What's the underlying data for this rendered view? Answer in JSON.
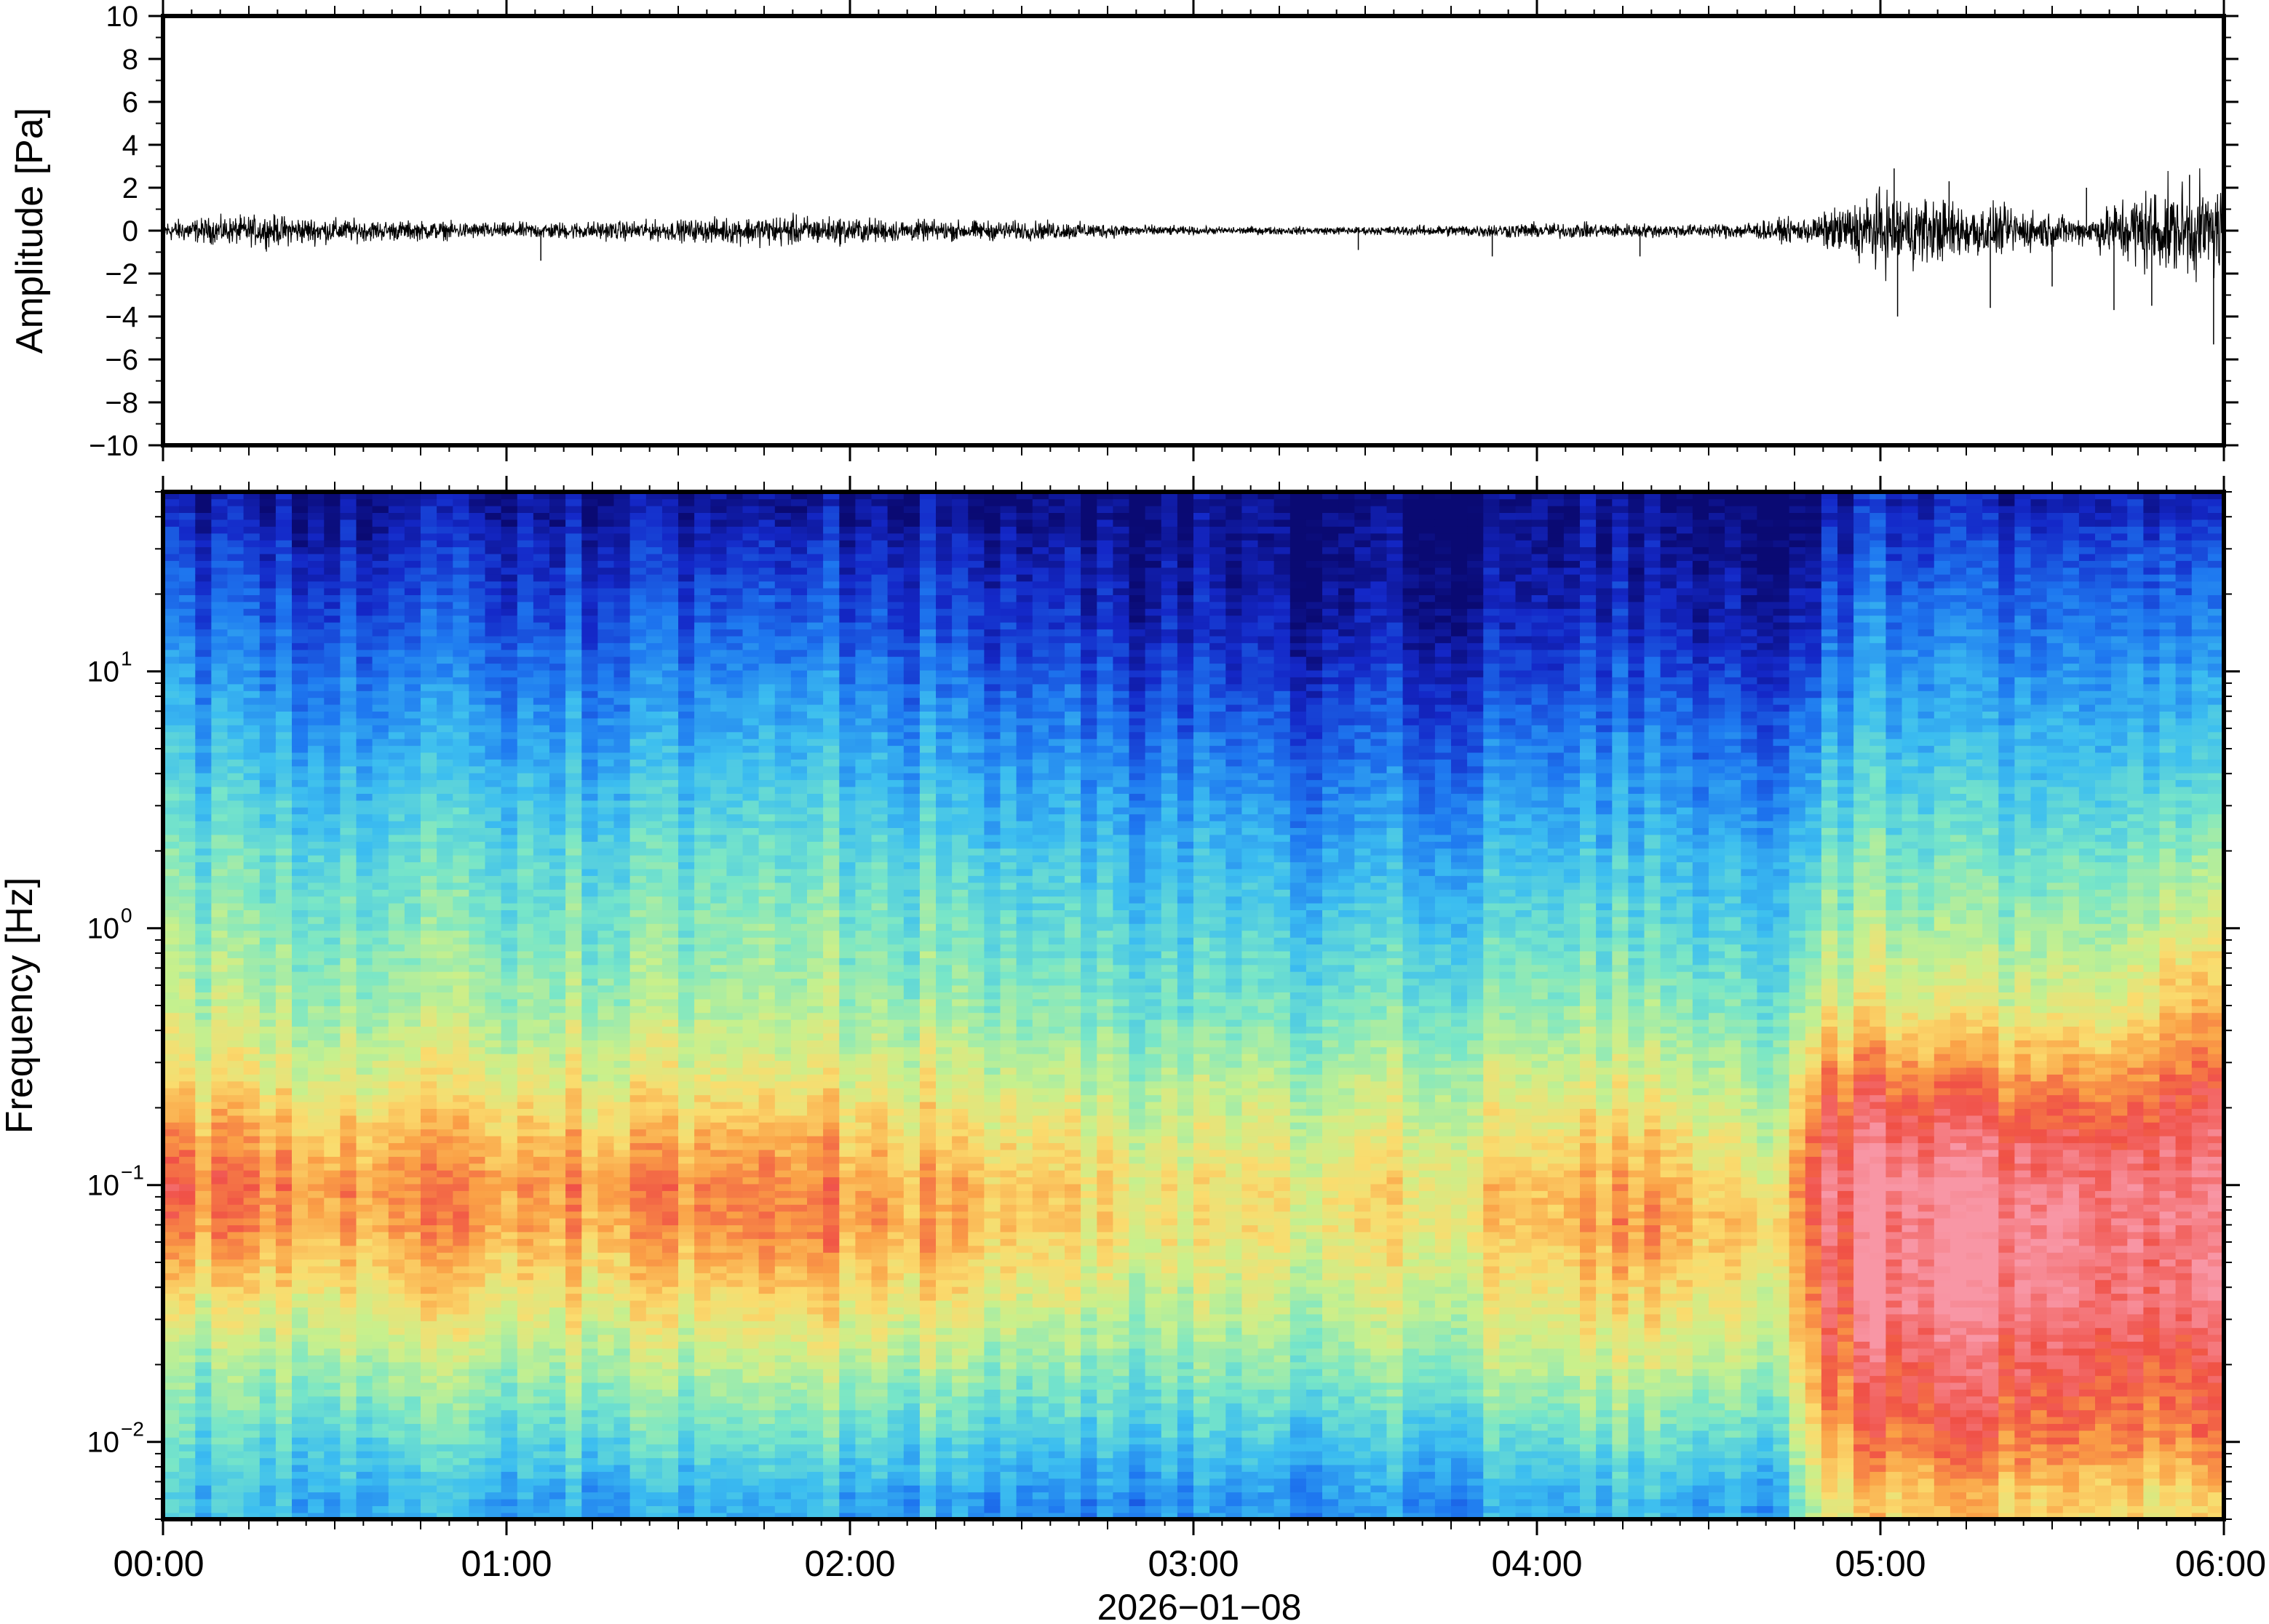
{
  "chart_data": [
    {
      "type": "line",
      "panel": "waveform",
      "ylabel": "Amplitude [Pa]",
      "ylim": [
        -10,
        10
      ],
      "ytick_labels": [
        "10",
        "8",
        "6",
        "4",
        "2",
        "0",
        "−2",
        "−4",
        "−6",
        "−8",
        "−10"
      ],
      "xlim": [
        "00:00",
        "06:00"
      ],
      "x_unit": "hours",
      "envelope": [
        {
          "x": 0.0,
          "amp": 0.4
        },
        {
          "x": 0.3,
          "amp": 0.6
        },
        {
          "x": 0.6,
          "amp": 0.4
        },
        {
          "x": 1.0,
          "amp": 0.3
        },
        {
          "x": 1.5,
          "amp": 0.4
        },
        {
          "x": 1.8,
          "amp": 0.6
        },
        {
          "x": 2.2,
          "amp": 0.4
        },
        {
          "x": 2.6,
          "amp": 0.35
        },
        {
          "x": 3.0,
          "amp": 0.15
        },
        {
          "x": 3.5,
          "amp": 0.15
        },
        {
          "x": 4.0,
          "amp": 0.3
        },
        {
          "x": 4.5,
          "amp": 0.25
        },
        {
          "x": 4.8,
          "amp": 0.5
        },
        {
          "x": 5.0,
          "amp": 1.5
        },
        {
          "x": 5.3,
          "amp": 1.0
        },
        {
          "x": 5.6,
          "amp": 0.5
        },
        {
          "x": 5.75,
          "amp": 1.6
        },
        {
          "x": 6.0,
          "amp": 1.8
        }
      ],
      "spikes": [
        {
          "x": 1.1,
          "value": -1.4
        },
        {
          "x": 3.48,
          "value": -0.9
        },
        {
          "x": 3.87,
          "value": -1.2
        },
        {
          "x": 4.3,
          "value": -1.2
        },
        {
          "x": 5.04,
          "value": 2.9
        },
        {
          "x": 5.05,
          "value": -4.0
        },
        {
          "x": 5.2,
          "value": 2.3
        },
        {
          "x": 5.32,
          "value": -3.6
        },
        {
          "x": 5.5,
          "value": -2.6
        },
        {
          "x": 5.6,
          "value": 2.0
        },
        {
          "x": 5.68,
          "value": -3.7
        },
        {
          "x": 5.79,
          "value": -3.5
        },
        {
          "x": 5.9,
          "value": 2.6
        },
        {
          "x": 5.97,
          "value": -5.3
        }
      ]
    },
    {
      "type": "heatmap",
      "panel": "spectrogram",
      "ylabel": "Frequency [Hz]",
      "yscale": "log",
      "ylim": [
        0.005,
        50
      ],
      "ytick_labels": [
        {
          "base": "10",
          "exp": "1"
        },
        {
          "base": "10",
          "exp": "0"
        },
        {
          "base": "10",
          "exp": "−1"
        },
        {
          "base": "10",
          "exp": "−2"
        }
      ],
      "xlabel": "2026−01−08",
      "xtick_labels": [
        "00:00",
        "01:00",
        "02:00",
        "03:00",
        "04:00",
        "05:00",
        "06:00"
      ],
      "xlim": [
        0,
        6
      ],
      "x_unit": "hours",
      "colormap": "rainbow (blue = low power, red/pink = high power)",
      "colors": {
        "low": "#0a0a73",
        "mid": "#7ee9c4",
        "high": "#ee4848",
        "peak": "#f8a8b0"
      },
      "time_columns": [
        0,
        0.5,
        1.0,
        1.5,
        1.8,
        2.2,
        2.6,
        2.9,
        3.5,
        4.0,
        4.3,
        4.7,
        4.8,
        5.0,
        5.25,
        5.5,
        5.72,
        5.85,
        6.0
      ],
      "frequency_bands_hz": [
        0.006,
        0.01,
        0.02,
        0.035,
        0.07,
        0.1,
        0.15,
        0.25,
        0.5,
        1,
        2,
        4,
        8,
        15,
        30,
        45
      ],
      "relative_power": [
        [
          0.35,
          0.4,
          0.5,
          0.62,
          0.8,
          0.84,
          0.78,
          0.66,
          0.56,
          0.5,
          0.44,
          0.36,
          0.28,
          0.2,
          0.12,
          0.05
        ],
        [
          0.33,
          0.42,
          0.55,
          0.66,
          0.78,
          0.8,
          0.74,
          0.64,
          0.54,
          0.48,
          0.42,
          0.34,
          0.26,
          0.18,
          0.1,
          0.04
        ],
        [
          0.3,
          0.4,
          0.53,
          0.64,
          0.76,
          0.78,
          0.72,
          0.62,
          0.52,
          0.46,
          0.4,
          0.32,
          0.24,
          0.16,
          0.09,
          0.03
        ],
        [
          0.3,
          0.42,
          0.55,
          0.66,
          0.78,
          0.8,
          0.74,
          0.64,
          0.54,
          0.48,
          0.42,
          0.34,
          0.26,
          0.18,
          0.1,
          0.04
        ],
        [
          0.34,
          0.45,
          0.6,
          0.7,
          0.84,
          0.82,
          0.78,
          0.66,
          0.56,
          0.52,
          0.46,
          0.38,
          0.3,
          0.22,
          0.12,
          0.05
        ],
        [
          0.3,
          0.4,
          0.55,
          0.66,
          0.76,
          0.76,
          0.7,
          0.62,
          0.52,
          0.46,
          0.4,
          0.32,
          0.24,
          0.16,
          0.09,
          0.03
        ],
        [
          0.28,
          0.38,
          0.52,
          0.62,
          0.72,
          0.72,
          0.68,
          0.6,
          0.5,
          0.44,
          0.38,
          0.3,
          0.22,
          0.14,
          0.08,
          0.03
        ],
        [
          0.26,
          0.36,
          0.48,
          0.56,
          0.64,
          0.64,
          0.6,
          0.54,
          0.44,
          0.38,
          0.32,
          0.24,
          0.16,
          0.08,
          0.03,
          0.01
        ],
        [
          0.27,
          0.36,
          0.5,
          0.58,
          0.66,
          0.66,
          0.62,
          0.56,
          0.46,
          0.38,
          0.3,
          0.22,
          0.14,
          0.06,
          0.02,
          0.01
        ],
        [
          0.29,
          0.4,
          0.54,
          0.62,
          0.7,
          0.7,
          0.64,
          0.58,
          0.48,
          0.4,
          0.32,
          0.24,
          0.15,
          0.07,
          0.02,
          0.01
        ],
        [
          0.33,
          0.44,
          0.58,
          0.68,
          0.78,
          0.76,
          0.7,
          0.6,
          0.5,
          0.42,
          0.34,
          0.26,
          0.18,
          0.1,
          0.04,
          0.02
        ],
        [
          0.3,
          0.42,
          0.56,
          0.62,
          0.7,
          0.66,
          0.6,
          0.54,
          0.46,
          0.38,
          0.32,
          0.24,
          0.16,
          0.08,
          0.03,
          0.01
        ],
        [
          0.6,
          0.72,
          0.8,
          0.86,
          0.9,
          0.92,
          0.88,
          0.8,
          0.6,
          0.5,
          0.42,
          0.34,
          0.24,
          0.15,
          0.07,
          0.03
        ],
        [
          0.7,
          0.82,
          0.9,
          0.98,
          0.96,
          1.0,
          0.94,
          0.84,
          0.64,
          0.54,
          0.46,
          0.38,
          0.3,
          0.24,
          0.16,
          0.1
        ],
        [
          0.72,
          0.84,
          0.92,
          0.98,
          1.0,
          0.98,
          0.92,
          0.82,
          0.62,
          0.52,
          0.44,
          0.36,
          0.28,
          0.22,
          0.14,
          0.08
        ],
        [
          0.68,
          0.8,
          0.88,
          0.94,
          0.96,
          0.94,
          0.88,
          0.78,
          0.6,
          0.5,
          0.42,
          0.34,
          0.26,
          0.2,
          0.12,
          0.06
        ],
        [
          0.66,
          0.78,
          0.86,
          0.9,
          0.92,
          0.92,
          0.86,
          0.76,
          0.6,
          0.5,
          0.42,
          0.34,
          0.26,
          0.2,
          0.13,
          0.07
        ],
        [
          0.7,
          0.84,
          0.9,
          0.98,
          1.0,
          1.0,
          0.98,
          0.9,
          0.78,
          0.66,
          0.54,
          0.44,
          0.36,
          0.28,
          0.2,
          0.12
        ],
        [
          0.72,
          0.86,
          0.92,
          1.0,
          1.0,
          0.98,
          0.96,
          0.88,
          0.76,
          0.64,
          0.52,
          0.42,
          0.34,
          0.26,
          0.18,
          0.1
        ]
      ]
    }
  ]
}
